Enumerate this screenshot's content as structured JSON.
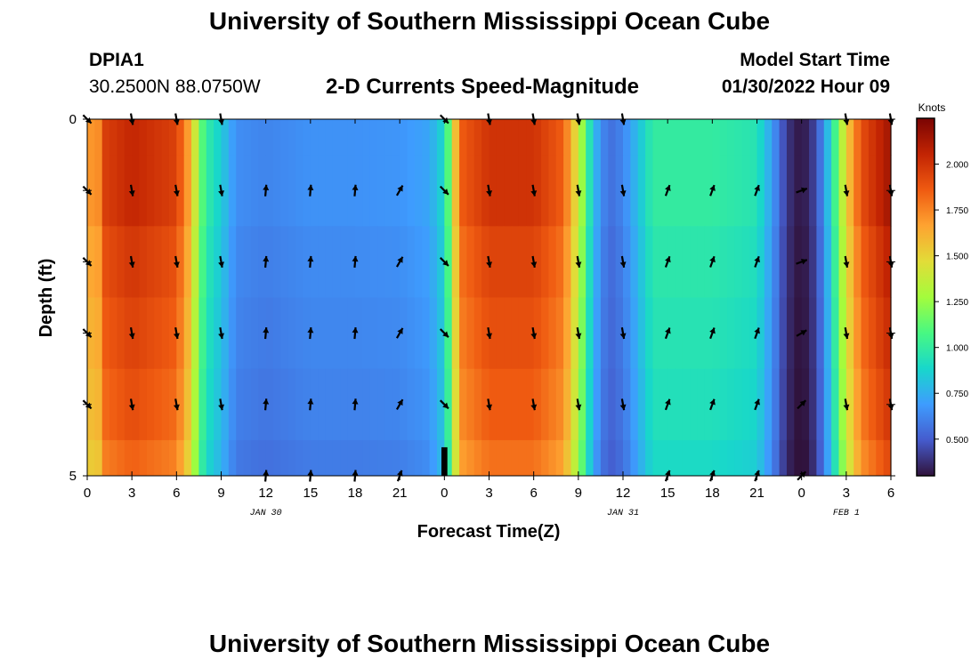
{
  "header": {
    "main_title": "University of Southern Mississippi Ocean Cube",
    "station_id": "DPIA1",
    "station_coords": "30.2500N  88.0750W",
    "plot_title": "2-D Currents Speed-Magnitude",
    "model_start_label": "Model Start Time",
    "model_start_value": "01/30/2022 Hour 09"
  },
  "footer": {
    "repeat_title": "University of Southern Mississippi Ocean Cube"
  },
  "colors": {
    "background": "#ffffff",
    "arrow": "#000000",
    "missing": "#000000"
  },
  "chart_data": {
    "type": "heatmap",
    "title": "2-D Currents Speed-Magnitude",
    "xlabel": "Forecast Time(Z)",
    "ylabel": "Depth (ft)",
    "x_hours": [
      0,
      3,
      6,
      9,
      12,
      15,
      18,
      21,
      24,
      27,
      30,
      33,
      36,
      39,
      42,
      45,
      48,
      51,
      54
    ],
    "x_tick_labels": [
      "0",
      "3",
      "6",
      "9",
      "12",
      "15",
      "18",
      "21",
      "0",
      "3",
      "6",
      "9",
      "12",
      "15",
      "18",
      "21",
      "0",
      "3",
      "6"
    ],
    "xlim": [
      0,
      54
    ],
    "date_labels": [
      {
        "hour": 12,
        "label": "JAN 30"
      },
      {
        "hour": 36,
        "label": "JAN 31"
      },
      {
        "hour": 51,
        "label": "FEB 1"
      }
    ],
    "depth_labels": [
      "0",
      "5"
    ],
    "ylim": [
      0,
      5
    ],
    "depth_rows": [
      0.5,
      1.5,
      2.5,
      3.5,
      4.5
    ],
    "colorbar": {
      "unit": "Knots",
      "min": 0.3,
      "max": 2.25,
      "ticks": [
        "0.500",
        "0.750",
        "1.000",
        "1.250",
        "1.500",
        "1.750",
        "2.000"
      ],
      "tick_values": [
        0.5,
        0.75,
        1.0,
        1.25,
        1.5,
        1.75,
        2.0
      ]
    },
    "speed_knots_by_hour": [
      [
        0,
        1.9
      ],
      [
        0.5,
        1.5
      ],
      [
        1,
        1.95
      ],
      [
        3,
        2.05
      ],
      [
        6,
        1.95
      ],
      [
        7,
        1.6
      ],
      [
        7.5,
        1.2
      ],
      [
        8,
        1.0
      ],
      [
        9,
        0.85
      ],
      [
        10,
        0.65
      ],
      [
        12,
        0.62
      ],
      [
        15,
        0.66
      ],
      [
        18,
        0.66
      ],
      [
        21,
        0.67
      ],
      [
        23,
        0.72
      ],
      [
        24,
        0.9
      ],
      [
        24.5,
        1.3
      ],
      [
        25,
        1.85
      ],
      [
        27,
        2.0
      ],
      [
        30,
        2.0
      ],
      [
        32,
        1.85
      ],
      [
        33,
        1.4
      ],
      [
        34,
        0.8
      ],
      [
        35,
        0.55
      ],
      [
        36,
        0.62
      ],
      [
        37,
        0.8
      ],
      [
        38,
        1.0
      ],
      [
        42,
        1.0
      ],
      [
        45,
        0.95
      ],
      [
        46,
        0.7
      ],
      [
        47,
        0.4
      ],
      [
        48,
        0.3
      ],
      [
        49,
        0.45
      ],
      [
        50,
        0.9
      ],
      [
        51,
        1.5
      ],
      [
        52,
        1.9
      ],
      [
        54,
        2.15
      ]
    ],
    "depth_speed_factor": [
      1.0,
      0.97,
      0.95,
      0.93,
      0.9
    ],
    "arrow_hours": [
      0,
      3,
      6,
      9,
      12,
      15,
      18,
      21,
      24,
      27,
      30,
      33,
      36,
      39,
      42,
      45,
      48,
      51,
      54
    ],
    "arrow_directions_deg": [
      [
        135,
        170,
        170,
        170,
        null,
        null,
        null,
        null,
        135,
        170,
        170,
        170,
        170,
        null,
        null,
        null,
        null,
        170,
        170
      ],
      [
        135,
        170,
        170,
        170,
        5,
        5,
        5,
        30,
        135,
        170,
        170,
        170,
        170,
        20,
        20,
        20,
        70,
        170,
        170
      ],
      [
        135,
        170,
        170,
        170,
        5,
        5,
        5,
        30,
        135,
        170,
        170,
        170,
        170,
        20,
        20,
        20,
        70,
        170,
        170
      ],
      [
        135,
        170,
        170,
        170,
        5,
        5,
        5,
        30,
        135,
        170,
        170,
        170,
        170,
        20,
        20,
        20,
        60,
        170,
        170
      ],
      [
        135,
        170,
        170,
        170,
        5,
        5,
        5,
        30,
        135,
        170,
        170,
        170,
        170,
        20,
        20,
        20,
        45,
        170,
        170
      ],
      [
        null,
        null,
        null,
        null,
        5,
        5,
        5,
        20,
        null,
        null,
        null,
        null,
        null,
        20,
        20,
        20,
        45,
        null,
        null
      ]
    ],
    "missing_cells": [
      {
        "hour_start": 23.8,
        "hour_end": 24.2,
        "depth_start": 4.6,
        "depth_end": 5.0
      }
    ]
  }
}
